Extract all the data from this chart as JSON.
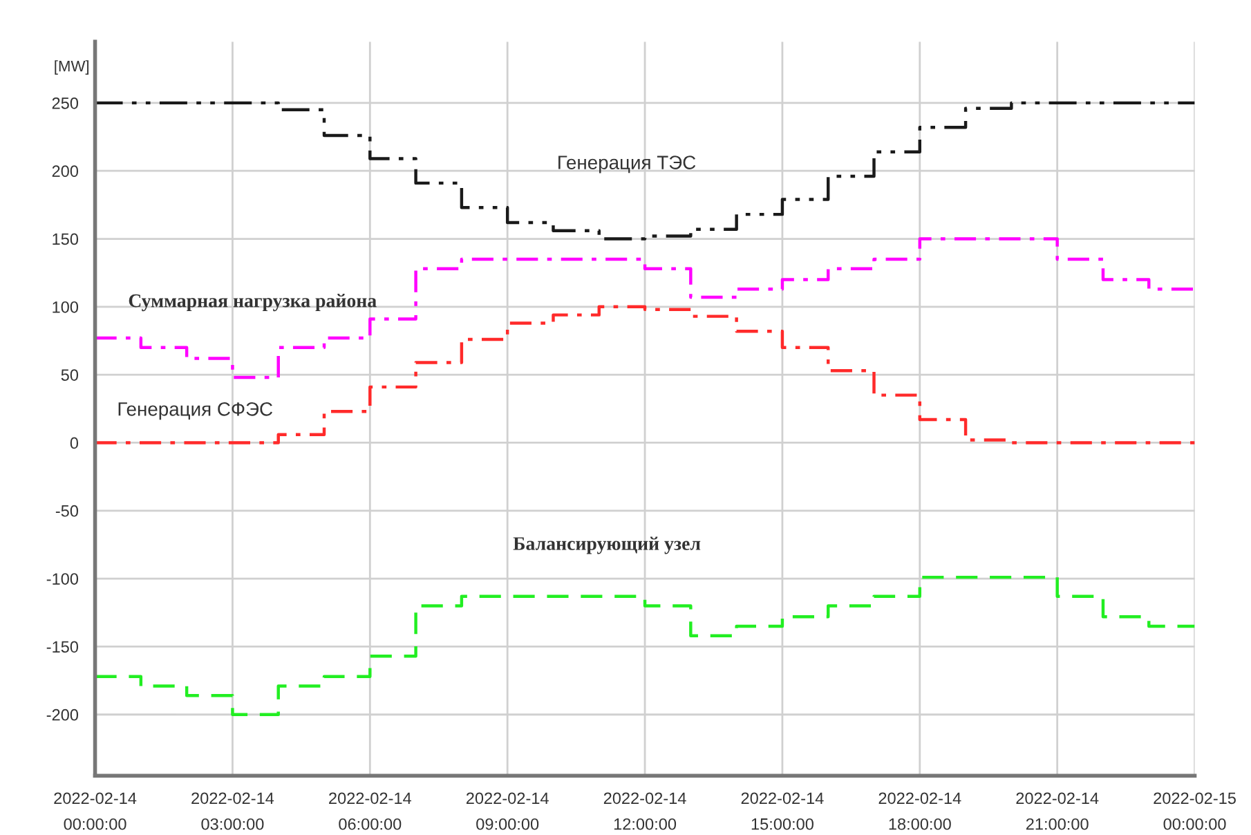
{
  "chart_data": {
    "type": "step",
    "ylabel": "[MW]",
    "x": [
      "2022-02-14T00:00",
      "2022-02-14T01:00",
      "2022-02-14T02:00",
      "2022-02-14T03:00",
      "2022-02-14T04:00",
      "2022-02-14T05:00",
      "2022-02-14T06:00",
      "2022-02-14T07:00",
      "2022-02-14T08:00",
      "2022-02-14T09:00",
      "2022-02-14T10:00",
      "2022-02-14T11:00",
      "2022-02-14T12:00",
      "2022-02-14T13:00",
      "2022-02-14T14:00",
      "2022-02-14T15:00",
      "2022-02-14T16:00",
      "2022-02-14T17:00",
      "2022-02-14T18:00",
      "2022-02-14T19:00",
      "2022-02-14T20:00",
      "2022-02-14T21:00",
      "2022-02-14T22:00",
      "2022-02-14T23:00",
      "2022-02-15T00:00"
    ],
    "series": [
      {
        "name": "Генерация ТЭС",
        "color": "#1a1a1a",
        "line_style": "dashdotdot",
        "values": [
          250,
          250,
          250,
          250,
          245,
          226,
          209,
          191,
          173,
          162,
          156,
          150,
          152,
          157,
          168,
          179,
          196,
          214,
          232,
          246,
          250,
          250,
          250,
          250,
          250
        ]
      },
      {
        "name": "Суммарная нагрузка района",
        "color": "#ff00ff",
        "line_style": "dashdot",
        "values": [
          77,
          70,
          62,
          48,
          70,
          77,
          91,
          128,
          135,
          135,
          135,
          135,
          128,
          107,
          113,
          120,
          128,
          135,
          150,
          150,
          150,
          135,
          120,
          113,
          113
        ]
      },
      {
        "name": "Генерация СФЭС",
        "color": "#ff2a2a",
        "line_style": "dashdot",
        "values": [
          0,
          0,
          0,
          0,
          6,
          23,
          41,
          59,
          76,
          88,
          94,
          100,
          98,
          93,
          82,
          70,
          53,
          35,
          17,
          2,
          0,
          0,
          0,
          0,
          0
        ]
      },
      {
        "name": "Балансирующий узел",
        "color": "#22ee22",
        "line_style": "dashed",
        "values": [
          -172,
          -179,
          -186,
          -200,
          -179,
          -172,
          -157,
          -120,
          -113,
          -113,
          -113,
          -113,
          -120,
          -142,
          -135,
          -128,
          -120,
          -113,
          -99,
          -99,
          -99,
          -113,
          -128,
          -135,
          -135
        ]
      }
    ],
    "xlim": [
      "2022-02-14T00:00",
      "2022-02-15T00:00"
    ],
    "xticks": [
      {
        "value": "2022-02-14T00:00",
        "label": "2022-02-14\n00:00:00"
      },
      {
        "value": "2022-02-14T03:00",
        "label": "2022-02-14\n03:00:00"
      },
      {
        "value": "2022-02-14T06:00",
        "label": "2022-02-14\n06:00:00"
      },
      {
        "value": "2022-02-14T09:00",
        "label": "2022-02-14\n09:00:00"
      },
      {
        "value": "2022-02-14T12:00",
        "label": "2022-02-14\n12:00:00"
      },
      {
        "value": "2022-02-14T15:00",
        "label": "2022-02-14\n15:00:00"
      },
      {
        "value": "2022-02-14T18:00",
        "label": "2022-02-14\n18:00:00"
      },
      {
        "value": "2022-02-14T21:00",
        "label": "2022-02-14\n21:00:00"
      },
      {
        "value": "2022-02-15T00:00",
        "label": "2022-02-15\n00:00:00"
      }
    ],
    "ylim": [
      -245,
      295
    ],
    "yticks": [
      -200,
      -150,
      -100,
      -50,
      0,
      50,
      100,
      150,
      200,
      250
    ],
    "grid": true,
    "legend": false
  }
}
